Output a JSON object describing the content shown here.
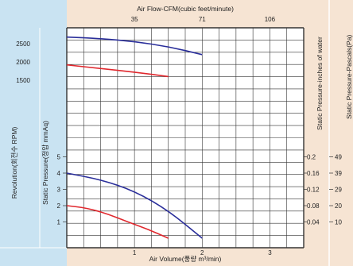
{
  "colors": {
    "panel_blue": "#c9e3f2",
    "panel_peach": "#f6e4d3",
    "grid": "#333333",
    "series_blue": "#2a2e9a",
    "series_red": "#e0282e"
  },
  "chart_data": {
    "type": "line",
    "axes": {
      "x_bottom": {
        "label": "Air Volume(풍량 m³/min)",
        "min": 0,
        "max": 3.5,
        "ticks": [
          1,
          2,
          3
        ]
      },
      "x_top": {
        "label": "Air Flow-CFM(cubic feet/minute)",
        "ticks": [
          {
            "value": 1,
            "label": "35"
          },
          {
            "value": 2,
            "label": "71"
          },
          {
            "value": 3,
            "label": "106"
          }
        ]
      },
      "y_rpm": {
        "label": "Revolution(회전수 RPM)",
        "ticks": [
          1500,
          2000,
          2500
        ]
      },
      "y_pressure": {
        "label": "Static Pressure(정압 mmAq)",
        "min": 0,
        "max": 5,
        "ticks": [
          1,
          2,
          3,
          4,
          5
        ]
      },
      "y_inches": {
        "label": "Static Pressure-inches of water",
        "ticks": [
          {
            "value": 1,
            "label": "0.04"
          },
          {
            "value": 2,
            "label": "0.08"
          },
          {
            "value": 3,
            "label": "0.12"
          },
          {
            "value": 4,
            "label": "0.16"
          },
          {
            "value": 5,
            "label": "0.2"
          }
        ]
      },
      "y_pascals": {
        "label": "Static Pressure-Pascals(Pa)",
        "ticks": [
          {
            "value": 1,
            "label": "10"
          },
          {
            "value": 2,
            "label": "20"
          },
          {
            "value": 3,
            "label": "29"
          },
          {
            "value": 4,
            "label": "39"
          },
          {
            "value": 5,
            "label": "49"
          }
        ]
      }
    },
    "series": [
      {
        "color": "blue",
        "kind": "pressure",
        "x": [
          0,
          0.5,
          1.0,
          1.5,
          2.0
        ],
        "y": [
          4.0,
          3.6,
          2.9,
          1.7,
          0
        ]
      },
      {
        "color": "red",
        "kind": "pressure",
        "x": [
          0,
          0.3,
          0.6,
          0.9,
          1.2,
          1.5
        ],
        "y": [
          2.0,
          1.85,
          1.5,
          1.0,
          0.55,
          0
        ]
      },
      {
        "color": "blue",
        "kind": "rpm",
        "x": [
          0,
          0.5,
          1.0,
          1.5,
          2.0
        ],
        "y": [
          2680,
          2640,
          2560,
          2420,
          2200
        ]
      },
      {
        "color": "red",
        "kind": "rpm",
        "x": [
          0,
          0.5,
          1.0,
          1.5
        ],
        "y": [
          1920,
          1820,
          1720,
          1600
        ]
      }
    ]
  }
}
